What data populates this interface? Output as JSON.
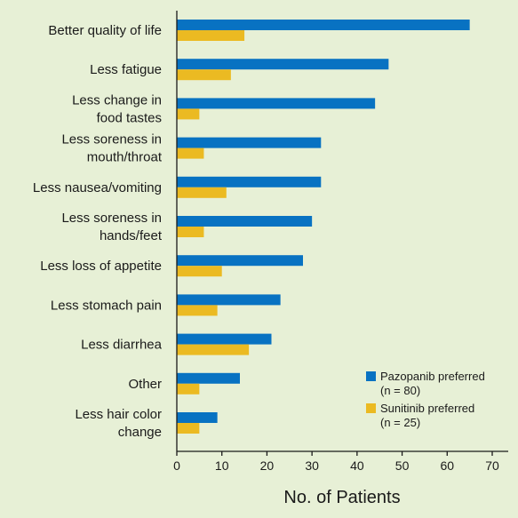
{
  "chart_data": {
    "type": "bar",
    "orientation": "horizontal",
    "categories": [
      [
        "Better quality of life"
      ],
      [
        "Less fatigue"
      ],
      [
        "Less change in",
        "food tastes"
      ],
      [
        "Less soreness in",
        "mouth/throat"
      ],
      [
        "Less nausea/vomiting"
      ],
      [
        "Less soreness in",
        "hands/feet"
      ],
      [
        "Less loss of appetite"
      ],
      [
        "Less stomach pain"
      ],
      [
        "Less diarrhea"
      ],
      [
        "Other"
      ],
      [
        "Less hair color",
        "change"
      ]
    ],
    "series": [
      {
        "name": "Pazopanib preferred",
        "sub": "(n = 80)",
        "color": "#0872c2",
        "values": [
          65,
          47,
          44,
          32,
          32,
          30,
          28,
          23,
          21,
          14,
          9
        ]
      },
      {
        "name": "Sunitinib preferred",
        "sub": "(n = 25)",
        "color": "#ebba22",
        "values": [
          15,
          12,
          5,
          6,
          11,
          6,
          10,
          9,
          16,
          5,
          5
        ]
      }
    ],
    "xlabel": "No. of Patients",
    "xlim": [
      0,
      70
    ],
    "xticks": [
      0,
      10,
      20,
      30,
      40,
      50,
      60,
      70
    ],
    "legend_position": "bottom-right",
    "grid": false
  }
}
